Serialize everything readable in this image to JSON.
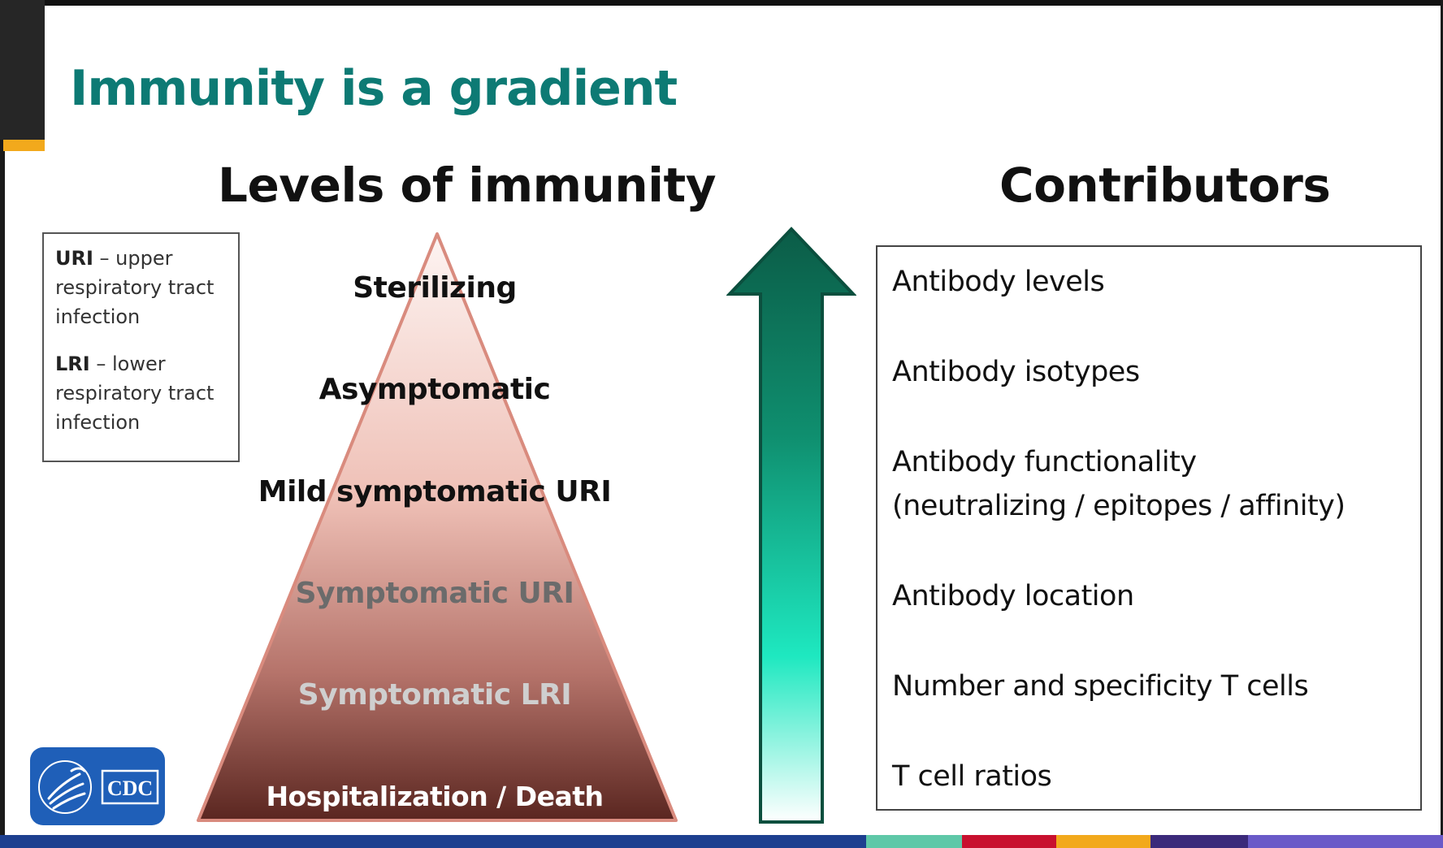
{
  "slide": {
    "title": "Immunity is a gradient",
    "left_heading": "Levels of immunity",
    "right_heading": "Contributors"
  },
  "legend": [
    {
      "term": "URI",
      "definition": " – upper respiratory tract infection"
    },
    {
      "term": "LRI",
      "definition": " – lower respiratory tract infection"
    }
  ],
  "levels": [
    "Sterilizing",
    "Asymptomatic",
    "Mild symptomatic URI",
    "Symptomatic URI",
    "Symptomatic LRI",
    "Hospitalization / Death"
  ],
  "contributors": [
    "Antibody levels",
    "Antibody isotypes",
    [
      "Antibody functionality",
      "(neutralizing / epitopes / affinity)"
    ],
    "Antibody location",
    "Number and specificity T cells",
    "T cell ratios"
  ],
  "logo": {
    "text": "CDC",
    "icon": "hhs-eagle-icon"
  },
  "colors": {
    "title": "#0d7a74",
    "arrow_top": "#0b5c47",
    "arrow_mid": "#1ee8c0",
    "pyramid_top": "#fdf4f2",
    "pyramid_bottom": "#5a2620",
    "pyramid_edge": "#d98b7e",
    "accent_gold": "#f2a91c",
    "logo_blue": "#1f5fb8"
  },
  "footer_colors": [
    "#1d3f8f",
    "#5fc8a8",
    "#c8102e",
    "#f2a91c",
    "#3b2a7a",
    "#6a5ac8"
  ]
}
